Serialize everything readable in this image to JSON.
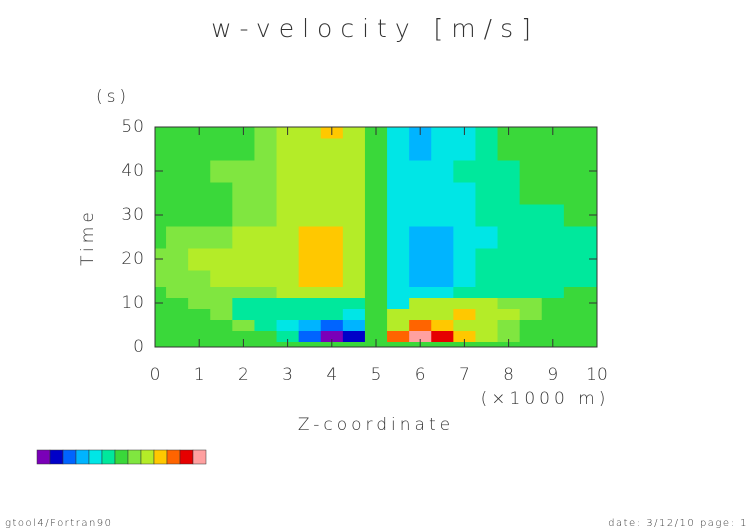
{
  "chart_data": {
    "type": "contour",
    "title": "w-velocity [m/s]",
    "x_label": "Z-coordinate",
    "x_unit": "(×1000 m)",
    "y_label": "Time",
    "y_unit": "(s)",
    "xlim": [
      0,
      10
    ],
    "ylim": [
      0,
      50
    ],
    "xticks": [
      0,
      1,
      2,
      3,
      4,
      5,
      6,
      7,
      8,
      9,
      10
    ],
    "yticks": [
      0,
      10,
      20,
      30,
      40,
      50
    ],
    "colors": [
      "#7a00b8",
      "#0000c8",
      "#0064ff",
      "#00b4ff",
      "#00e6e6",
      "#00e89c",
      "#3ad83a",
      "#80e640",
      "#b4ec28",
      "#ffc800",
      "#ff6400",
      "#e60000",
      "#ffa0a0"
    ],
    "x": [
      0,
      0.5,
      1,
      1.5,
      2,
      2.5,
      3,
      3.5,
      4,
      4.5,
      5,
      5.5,
      6,
      6.5,
      7,
      7.5,
      8,
      8.5,
      9,
      9.5,
      10
    ],
    "y": [
      0,
      2.5,
      5,
      7.5,
      10,
      12.5,
      15,
      20,
      25,
      30,
      35,
      40,
      45,
      50
    ],
    "z": [
      [
        6,
        6,
        6,
        6,
        6,
        6,
        6,
        6,
        6,
        6,
        6,
        6,
        6,
        6,
        6,
        6,
        6,
        6,
        6,
        6,
        6
      ],
      [
        6,
        6,
        6,
        6,
        6,
        6,
        5,
        2,
        0,
        1,
        6,
        10,
        12,
        11,
        9,
        8,
        7,
        6,
        6,
        6,
        6
      ],
      [
        6,
        6,
        6,
        6,
        7,
        5,
        4,
        3,
        2,
        3,
        6,
        8,
        10,
        9,
        8,
        8,
        7,
        6,
        6,
        6,
        6
      ],
      [
        6,
        6,
        6,
        7,
        5,
        5,
        5,
        5,
        5,
        4,
        6,
        8,
        8,
        8,
        9,
        8,
        8,
        7,
        6,
        6,
        6
      ],
      [
        6,
        6,
        7,
        7,
        5,
        5,
        5,
        5,
        5,
        5,
        6,
        4,
        8,
        8,
        8,
        8,
        7,
        7,
        6,
        6,
        6
      ],
      [
        6,
        7,
        7,
        7,
        7,
        7,
        8,
        8,
        8,
        8,
        6,
        4,
        4,
        4,
        5,
        5,
        5,
        5,
        5,
        6,
        6
      ],
      [
        7,
        7,
        7,
        8,
        8,
        8,
        8,
        9,
        9,
        8,
        6,
        4,
        3,
        3,
        4,
        5,
        5,
        5,
        5,
        5,
        5
      ],
      [
        7,
        7,
        8,
        8,
        8,
        8,
        8,
        9,
        9,
        8,
        6,
        4,
        3,
        3,
        4,
        5,
        5,
        5,
        5,
        5,
        5
      ],
      [
        6,
        7,
        7,
        7,
        8,
        8,
        8,
        9,
        9,
        8,
        6,
        4,
        3,
        3,
        4,
        4,
        5,
        5,
        5,
        5,
        5
      ],
      [
        6,
        6,
        6,
        6,
        7,
        7,
        8,
        8,
        8,
        8,
        6,
        4,
        4,
        4,
        4,
        5,
        5,
        5,
        5,
        6,
        6
      ],
      [
        6,
        6,
        6,
        6,
        7,
        7,
        8,
        8,
        8,
        8,
        6,
        4,
        4,
        4,
        4,
        5,
        5,
        6,
        6,
        6,
        6
      ],
      [
        6,
        6,
        6,
        7,
        7,
        7,
        8,
        8,
        8,
        8,
        6,
        4,
        4,
        4,
        5,
        5,
        5,
        6,
        6,
        6,
        6
      ],
      [
        6,
        6,
        6,
        6,
        6,
        7,
        8,
        8,
        8,
        8,
        6,
        4,
        3,
        4,
        4,
        5,
        6,
        6,
        6,
        6,
        6
      ],
      [
        6,
        6,
        6,
        6,
        6,
        7,
        8,
        8,
        9,
        8,
        6,
        4,
        3,
        4,
        4,
        5,
        6,
        6,
        6,
        6,
        6
      ]
    ]
  },
  "footer": {
    "left": "gtool4/Fortran90",
    "right": "date: 3/12/10 page: 1"
  }
}
